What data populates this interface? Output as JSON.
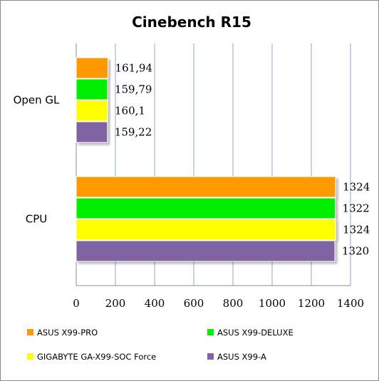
{
  "chart_data": {
    "type": "bar",
    "orientation": "horizontal",
    "title": "Cinebench R15",
    "categories": [
      "Open GL",
      "CPU"
    ],
    "series": [
      {
        "name": "ASUS X99-PRO",
        "color": "#ff9900",
        "values": [
          161.94,
          1324
        ],
        "labels": [
          "161,94",
          "1324"
        ]
      },
      {
        "name": "ASUS X99-DELUXE",
        "color": "#00ee00",
        "values": [
          159.79,
          1322
        ],
        "labels": [
          "159,79",
          "1322"
        ]
      },
      {
        "name": "GIGABYTE GA-X99-SOC Force",
        "color": "#ffff00",
        "values": [
          160.1,
          1324
        ],
        "labels": [
          "160,1",
          "1324"
        ]
      },
      {
        "name": "ASUS X99-A",
        "color": "#8064a2",
        "values": [
          159.22,
          1320
        ],
        "labels": [
          "159,22",
          "1320"
        ]
      }
    ],
    "xlim": [
      0,
      1400
    ],
    "xticks": [
      0,
      200,
      400,
      600,
      800,
      1000,
      1200,
      1400
    ],
    "grid": true,
    "legend_position": "bottom"
  }
}
